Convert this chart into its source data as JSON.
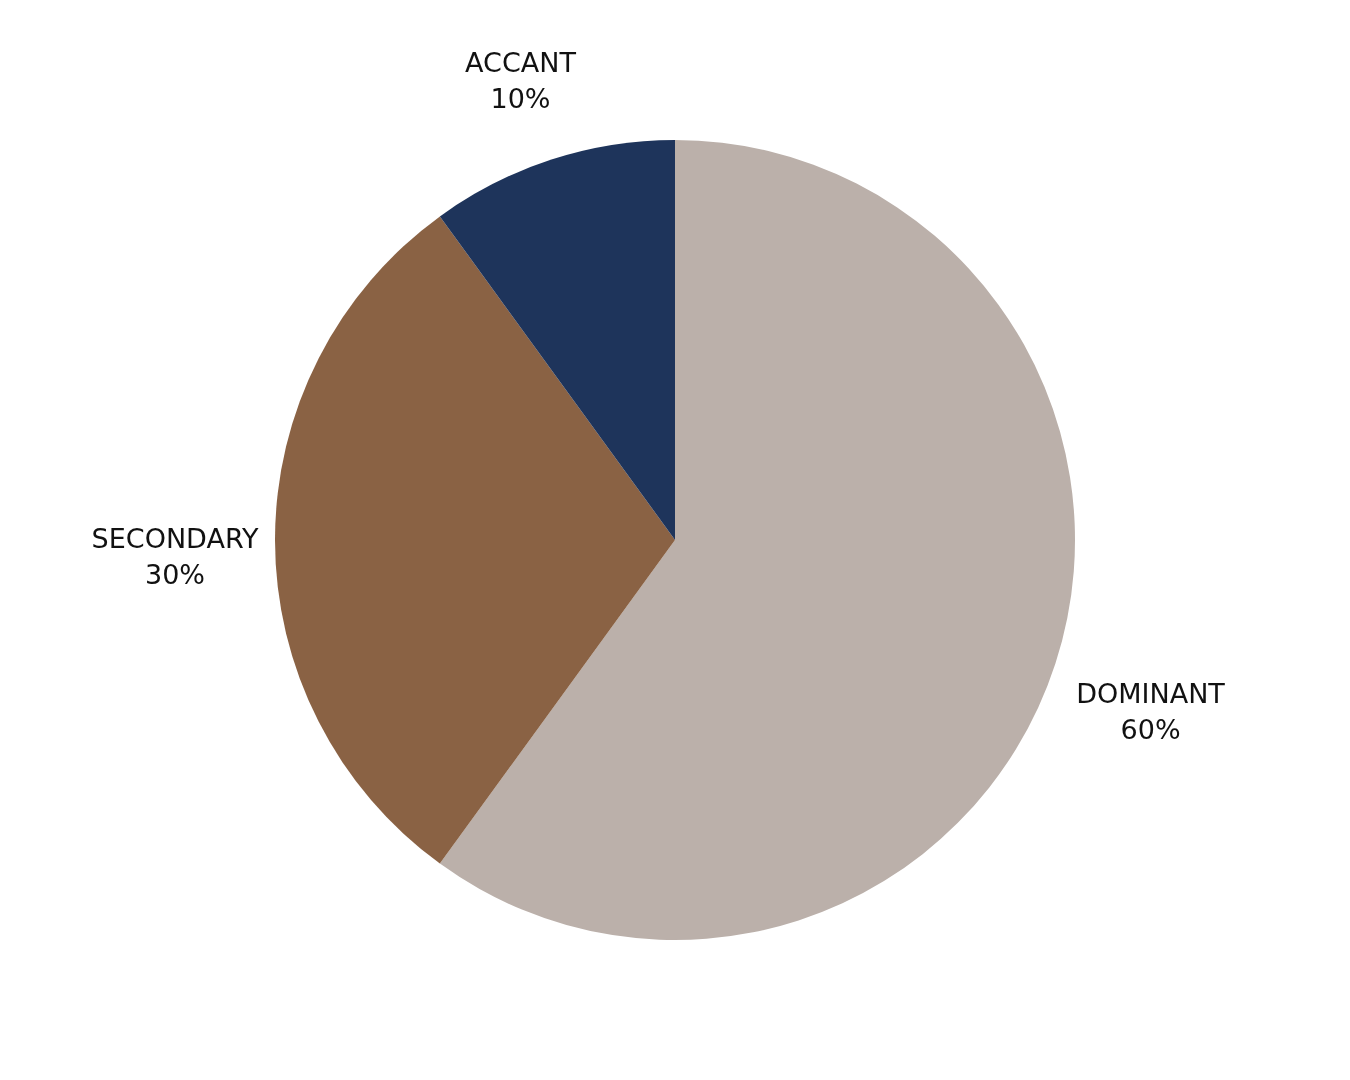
{
  "chart_data": {
    "type": "pie",
    "categories": [
      "DOMINANT",
      "SECONDARY",
      "ACCANT"
    ],
    "values": [
      60,
      30,
      10
    ],
    "colors": [
      "#bbb0aa",
      "#8a6244",
      "#1e345b"
    ],
    "value_labels": [
      "60%",
      "30%",
      "10%"
    ]
  }
}
